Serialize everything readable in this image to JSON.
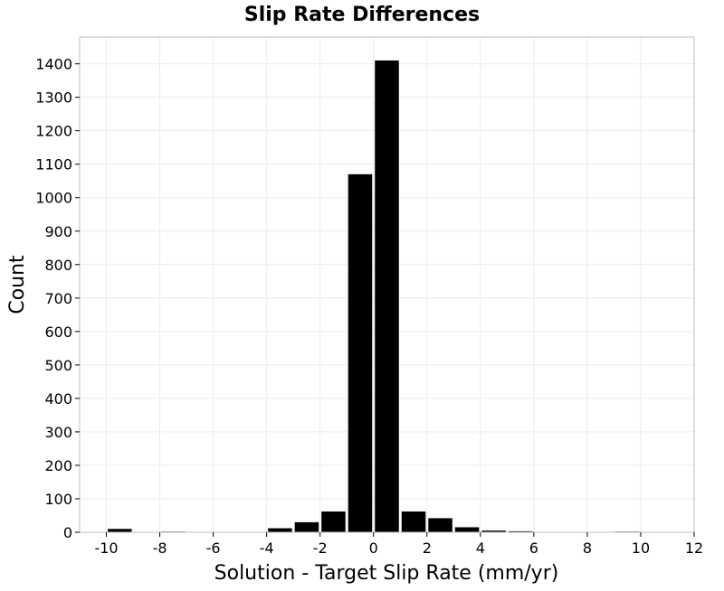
{
  "chart_data": {
    "type": "bar",
    "title": "Slip Rate Differences",
    "xlabel": "Solution - Target Slip Rate (mm/yr)",
    "ylabel": "Count",
    "xlim": [
      -11,
      12
    ],
    "ylim": [
      0,
      1480
    ],
    "x_ticks": [
      -10,
      -8,
      -6,
      -4,
      -2,
      0,
      2,
      4,
      6,
      8,
      10,
      12
    ],
    "y_ticks": [
      0,
      100,
      200,
      300,
      400,
      500,
      600,
      700,
      800,
      900,
      1000,
      1100,
      1200,
      1300,
      1400
    ],
    "bin_width": 1,
    "grid": true,
    "bar_color": "#000000",
    "bins": [
      {
        "x": -9.5,
        "value": 10
      },
      {
        "x": -7.5,
        "value": 2
      },
      {
        "x": -3.5,
        "value": 12
      },
      {
        "x": -2.5,
        "value": 30
      },
      {
        "x": -1.5,
        "value": 62
      },
      {
        "x": -0.5,
        "value": 1070
      },
      {
        "x": 0.5,
        "value": 1410
      },
      {
        "x": 1.5,
        "value": 62
      },
      {
        "x": 2.5,
        "value": 42
      },
      {
        "x": 3.5,
        "value": 15
      },
      {
        "x": 4.5,
        "value": 5
      },
      {
        "x": 5.5,
        "value": 3
      },
      {
        "x": 9.5,
        "value": 2
      }
    ]
  }
}
